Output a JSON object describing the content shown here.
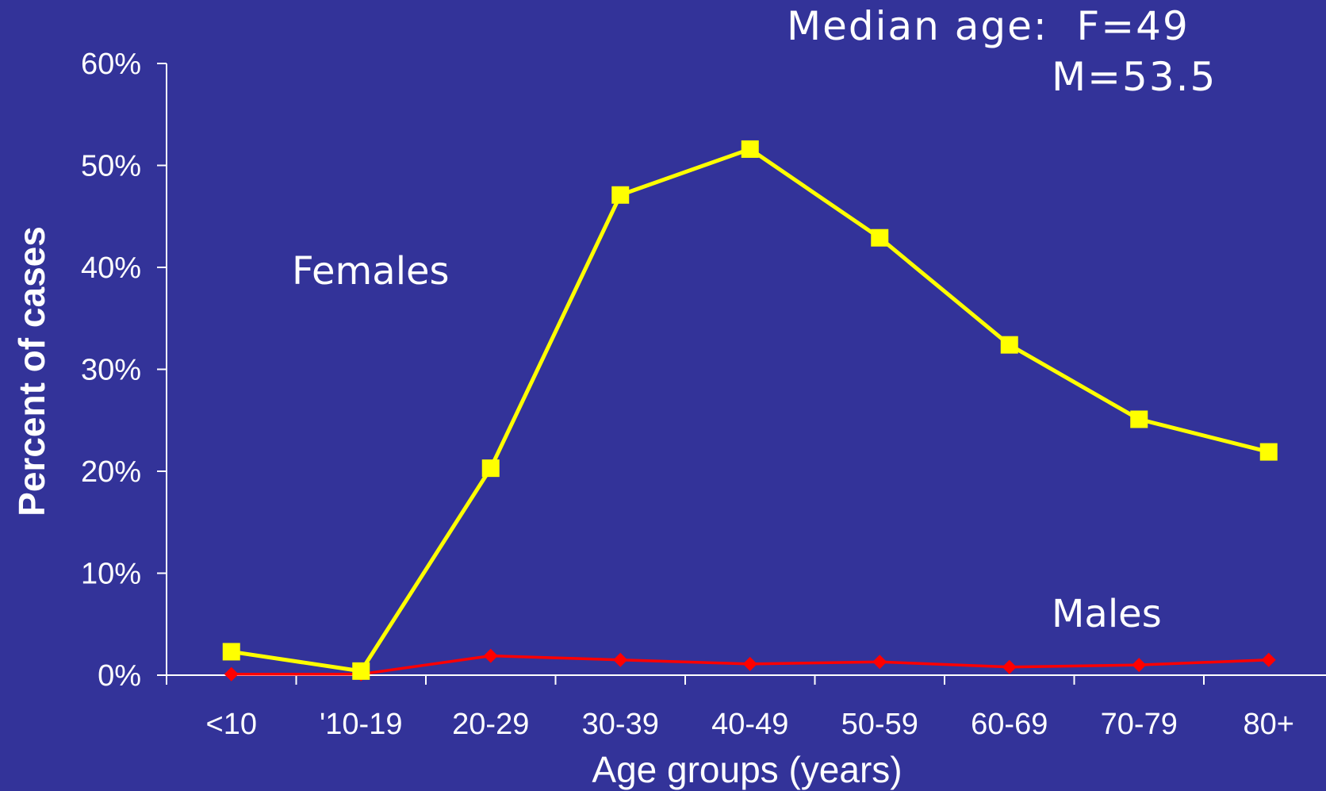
{
  "chart_data": {
    "type": "line",
    "categories": [
      "<10",
      "'10-19",
      "20-29",
      "30-39",
      "40-49",
      "50-59",
      "60-69",
      "70-79",
      "80+"
    ],
    "series": [
      {
        "name": "Females",
        "color": "#ffff00",
        "marker": "square",
        "values": [
          2.3,
          0.4,
          20.3,
          47.1,
          51.6,
          42.9,
          32.4,
          25.1,
          21.9
        ]
      },
      {
        "name": "Males",
        "color": "#ff0000",
        "marker": "diamond",
        "values": [
          0.1,
          0.1,
          1.9,
          1.5,
          1.1,
          1.3,
          0.8,
          1.0,
          1.5
        ]
      }
    ],
    "xlabel": "Age groups (years)",
    "ylabel": "Percent of cases",
    "ylim": [
      0,
      60
    ],
    "yticks": [
      "0%",
      "10%",
      "20%",
      "30%",
      "40%",
      "50%",
      "60%"
    ],
    "annotation": {
      "line1": "Median age:  F=49",
      "line2": "M=53.5"
    },
    "grid": false,
    "background": "#333399",
    "axis_color": "#ffffff"
  }
}
